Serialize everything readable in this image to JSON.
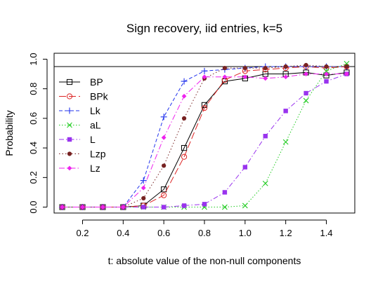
{
  "chart_data": {
    "type": "line",
    "title": "Sign recovery, iid entries, k=5",
    "xlabel": "t: absolute value of the non-null components",
    "ylabel": "Probability",
    "xlim": [
      0.06,
      1.54
    ],
    "ylim": [
      -0.04,
      1.04
    ],
    "xticks": [
      "0.2",
      "0.4",
      "0.6",
      "0.8",
      "1.0",
      "1.2",
      "1.4"
    ],
    "yticks": [
      "0.0",
      "0.2",
      "0.4",
      "0.6",
      "0.8",
      "1.0"
    ],
    "reference_line_y": 0.95,
    "grid": false,
    "legend_position": "left",
    "x": [
      0.1,
      0.2,
      0.3,
      0.4,
      0.5,
      0.6,
      0.7,
      0.8,
      0.9,
      1.0,
      1.1,
      1.2,
      1.3,
      1.4,
      1.5
    ],
    "series": [
      {
        "name": "BP",
        "color": "#000000",
        "marker": "square-open",
        "dash": "",
        "values": [
          0,
          0,
          0,
          0,
          0.01,
          0.12,
          0.4,
          0.69,
          0.85,
          0.87,
          0.9,
          0.9,
          0.91,
          0.89,
          0.91
        ]
      },
      {
        "name": "BPk",
        "color": "#dd2222",
        "marker": "circle-open",
        "dash": "10 4",
        "values": [
          0,
          0,
          0,
          0,
          0.01,
          0.08,
          0.34,
          0.67,
          0.86,
          0.92,
          0.93,
          0.94,
          0.95,
          0.94,
          0.95
        ]
      },
      {
        "name": "Lk",
        "color": "#2233ee",
        "marker": "plus",
        "dash": "5 3",
        "values": [
          0,
          0,
          0,
          0,
          0.18,
          0.61,
          0.85,
          0.92,
          0.93,
          0.94,
          0.95,
          0.95,
          0.95,
          0.95,
          0.95
        ]
      },
      {
        "name": "aL",
        "color": "#22cc22",
        "marker": "cross",
        "dash": "1.5 2.5",
        "values": [
          0,
          0,
          0,
          0,
          0,
          0,
          0,
          0,
          0,
          0.01,
          0.16,
          0.44,
          0.72,
          0.92,
          0.97
        ]
      },
      {
        "name": "L",
        "color": "#9933ee",
        "marker": "square-filled",
        "dash": "7 3 1.5 3",
        "values": [
          0,
          0,
          0,
          0,
          0,
          0,
          0.01,
          0.02,
          0.1,
          0.27,
          0.48,
          0.65,
          0.77,
          0.85,
          0.9
        ]
      },
      {
        "name": "Lzp",
        "color": "#772222",
        "marker": "circle-filled",
        "dash": "1.5 3",
        "values": [
          0,
          0,
          0,
          0,
          0.06,
          0.28,
          0.6,
          0.87,
          0.94,
          0.94,
          0.94,
          0.95,
          0.96,
          0.95,
          0.95
        ]
      },
      {
        "name": "Lz",
        "color": "#ee22ee",
        "marker": "diamond",
        "dash": "8 3 1.5 3",
        "values": [
          0,
          0,
          0,
          0,
          0.13,
          0.47,
          0.75,
          0.88,
          0.88,
          0.88,
          0.87,
          0.88,
          0.9,
          0.9,
          0.9
        ]
      }
    ]
  }
}
